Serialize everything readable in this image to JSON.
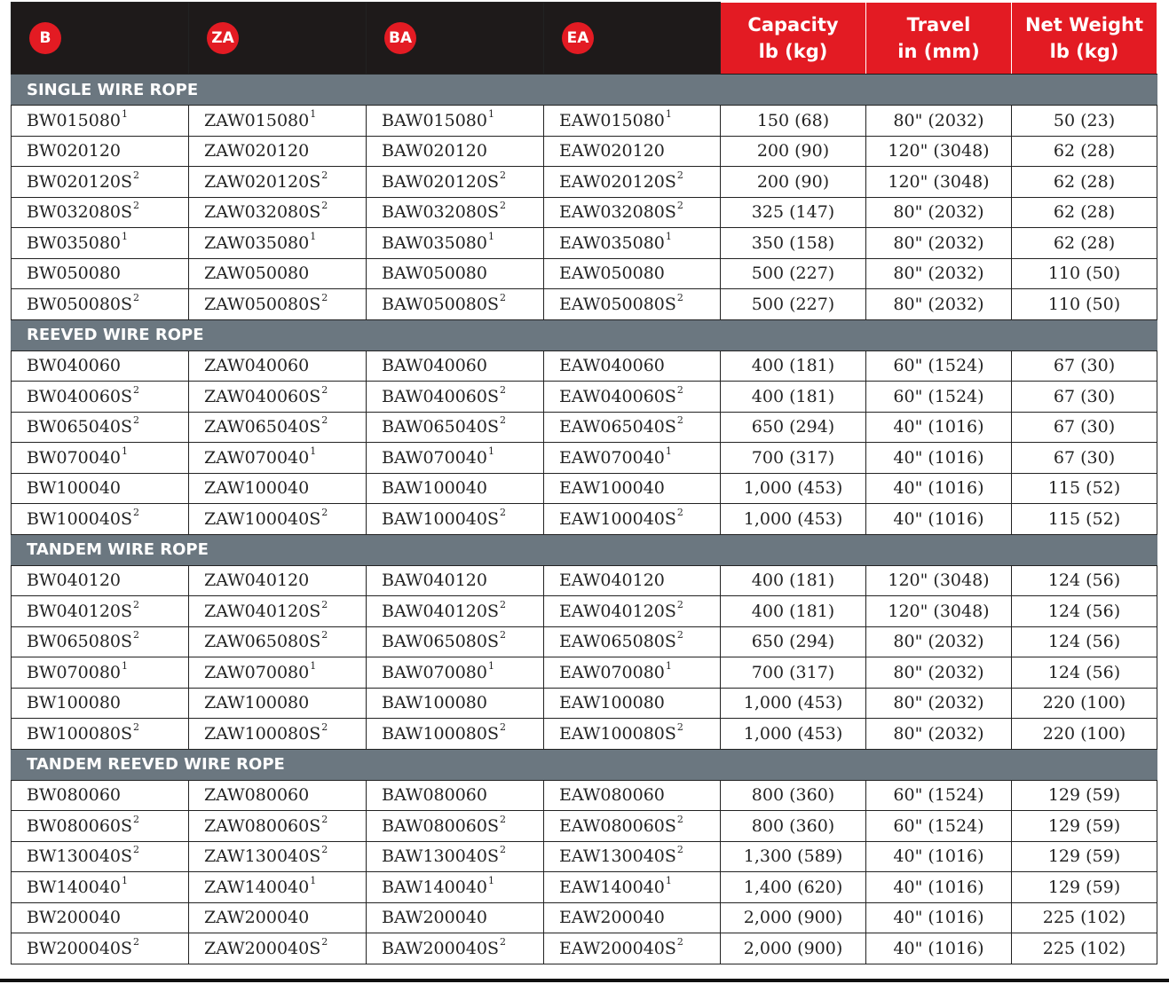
{
  "header": {
    "badges": [
      "B",
      "ZA",
      "BA",
      "EA"
    ],
    "capacity": [
      "Capacity",
      "lb (kg)"
    ],
    "travel": [
      "Travel",
      "in (mm)"
    ],
    "weight": [
      "Net Weight",
      "lb (kg)"
    ]
  },
  "colors": {
    "accent": "#e31b23",
    "header_bg": "#1e1a1a",
    "section_bg": "#6b7780"
  },
  "sections": [
    {
      "title": "SINGLE WIRE ROPE",
      "rows": [
        [
          "BW015080",
          "ZAW015080",
          "BAW015080",
          "EAW015080",
          "1",
          "150 (68)",
          "80\" (2032)",
          "50 (23)"
        ],
        [
          "BW020120",
          "ZAW020120",
          "BAW020120",
          "EAW020120",
          "",
          "200 (90)",
          "120\" (3048)",
          "62 (28)"
        ],
        [
          "BW020120S",
          "ZAW020120S",
          "BAW020120S",
          "EAW020120S",
          "2",
          "200 (90)",
          "120\" (3048)",
          "62 (28)"
        ],
        [
          "BW032080S",
          "ZAW032080S",
          "BAW032080S",
          "EAW032080S",
          "2",
          "325 (147)",
          "80\" (2032)",
          "62 (28)"
        ],
        [
          "BW035080",
          "ZAW035080",
          "BAW035080",
          "EAW035080",
          "1",
          "350 (158)",
          "80\" (2032)",
          "62 (28)"
        ],
        [
          "BW050080",
          "ZAW050080",
          "BAW050080",
          "EAW050080",
          "",
          "500 (227)",
          "80\" (2032)",
          "110 (50)"
        ],
        [
          "BW050080S",
          "ZAW050080S",
          "BAW050080S",
          "EAW050080S",
          "2",
          "500 (227)",
          "80\" (2032)",
          "110 (50)"
        ]
      ]
    },
    {
      "title": "REEVED WIRE ROPE",
      "rows": [
        [
          "BW040060",
          "ZAW040060",
          "BAW040060",
          "EAW040060",
          "",
          "400 (181)",
          "60\" (1524)",
          "67 (30)"
        ],
        [
          "BW040060S",
          "ZAW040060S",
          "BAW040060S",
          "EAW040060S",
          "2",
          "400 (181)",
          "60\" (1524)",
          "67 (30)"
        ],
        [
          "BW065040S",
          "ZAW065040S",
          "BAW065040S",
          "EAW065040S",
          "2",
          "650 (294)",
          "40\" (1016)",
          "67 (30)"
        ],
        [
          "BW070040",
          "ZAW070040",
          "BAW070040",
          "EAW070040",
          "1",
          "700 (317)",
          "40\" (1016)",
          "67 (30)"
        ],
        [
          "BW100040",
          "ZAW100040",
          "BAW100040",
          "EAW100040",
          "",
          "1,000 (453)",
          "40\" (1016)",
          "115 (52)"
        ],
        [
          "BW100040S",
          "ZAW100040S",
          "BAW100040S",
          "EAW100040S",
          "2",
          "1,000 (453)",
          "40\" (1016)",
          "115 (52)"
        ]
      ]
    },
    {
      "title": "TANDEM WIRE ROPE",
      "rows": [
        [
          "BW040120",
          "ZAW040120",
          "BAW040120",
          "EAW040120",
          "",
          "400 (181)",
          "120\" (3048)",
          "124 (56)"
        ],
        [
          "BW040120S",
          "ZAW040120S",
          "BAW040120S",
          "EAW040120S",
          "2",
          "400 (181)",
          "120\" (3048)",
          "124 (56)"
        ],
        [
          "BW065080S",
          "ZAW065080S",
          "BAW065080S",
          "EAW065080S",
          "2",
          "650 (294)",
          "80\" (2032)",
          "124 (56)"
        ],
        [
          "BW070080",
          "ZAW070080",
          "BAW070080",
          "EAW070080",
          "1",
          "700 (317)",
          "80\" (2032)",
          "124 (56)"
        ],
        [
          "BW100080",
          "ZAW100080",
          "BAW100080",
          "EAW100080",
          "",
          "1,000 (453)",
          "80\" (2032)",
          "220 (100)"
        ],
        [
          "BW100080S",
          "ZAW100080S",
          "BAW100080S",
          "EAW100080S",
          "2",
          "1,000 (453)",
          "80\" (2032)",
          "220 (100)"
        ]
      ]
    },
    {
      "title": "TANDEM REEVED WIRE ROPE",
      "rows": [
        [
          "BW080060",
          "ZAW080060",
          "BAW080060",
          "EAW080060",
          "",
          "800 (360)",
          "60\" (1524)",
          "129 (59)"
        ],
        [
          "BW080060S",
          "ZAW080060S",
          "BAW080060S",
          "EAW080060S",
          "2",
          "800 (360)",
          "60\" (1524)",
          "129 (59)"
        ],
        [
          "BW130040S",
          "ZAW130040S",
          "BAW130040S",
          "EAW130040S",
          "2",
          "1,300 (589)",
          "40\" (1016)",
          "129 (59)"
        ],
        [
          "BW140040",
          "ZAW140040",
          "BAW140040",
          "EAW140040",
          "1",
          "1,400 (620)",
          "40\" (1016)",
          "129 (59)"
        ],
        [
          "BW200040",
          "ZAW200040",
          "BAW200040",
          "EAW200040",
          "",
          "2,000 (900)",
          "40\" (1016)",
          "225 (102)"
        ],
        [
          "BW200040S",
          "ZAW200040S",
          "BAW200040S",
          "EAW200040S",
          "2",
          "2,000 (900)",
          "40\" (1016)",
          "225 (102)"
        ]
      ]
    }
  ]
}
